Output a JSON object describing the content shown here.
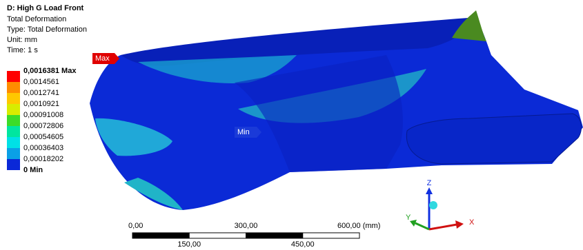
{
  "header": {
    "title": "D: High G Load Front",
    "lines": [
      "Total Deformation",
      "Type: Total Deformation",
      "Unit: mm",
      "Time: 1 s"
    ]
  },
  "legend": {
    "labels": [
      "0,0016381 Max",
      "0,0014561",
      "0,0012741",
      "0,0010921",
      "0,00091008",
      "0,00072806",
      "0,00054605",
      "0,00036403",
      "0,00018202",
      "0 Min"
    ],
    "colors": [
      "#ff0000",
      "#ff8c00",
      "#ffc800",
      "#d8ec00",
      "#3cdc28",
      "#00e6a0",
      "#00e1e6",
      "#0aa0e6",
      "#0a28d8"
    ]
  },
  "probes": {
    "max": "Max",
    "min": "Min"
  },
  "scale_bar": {
    "top_labels": [
      "0,00",
      "300,00",
      "600,00 (mm)"
    ],
    "bottom_labels": [
      "150,00",
      "450,00"
    ]
  },
  "triad": {
    "z": "Z",
    "y": "Y",
    "x": "X"
  }
}
